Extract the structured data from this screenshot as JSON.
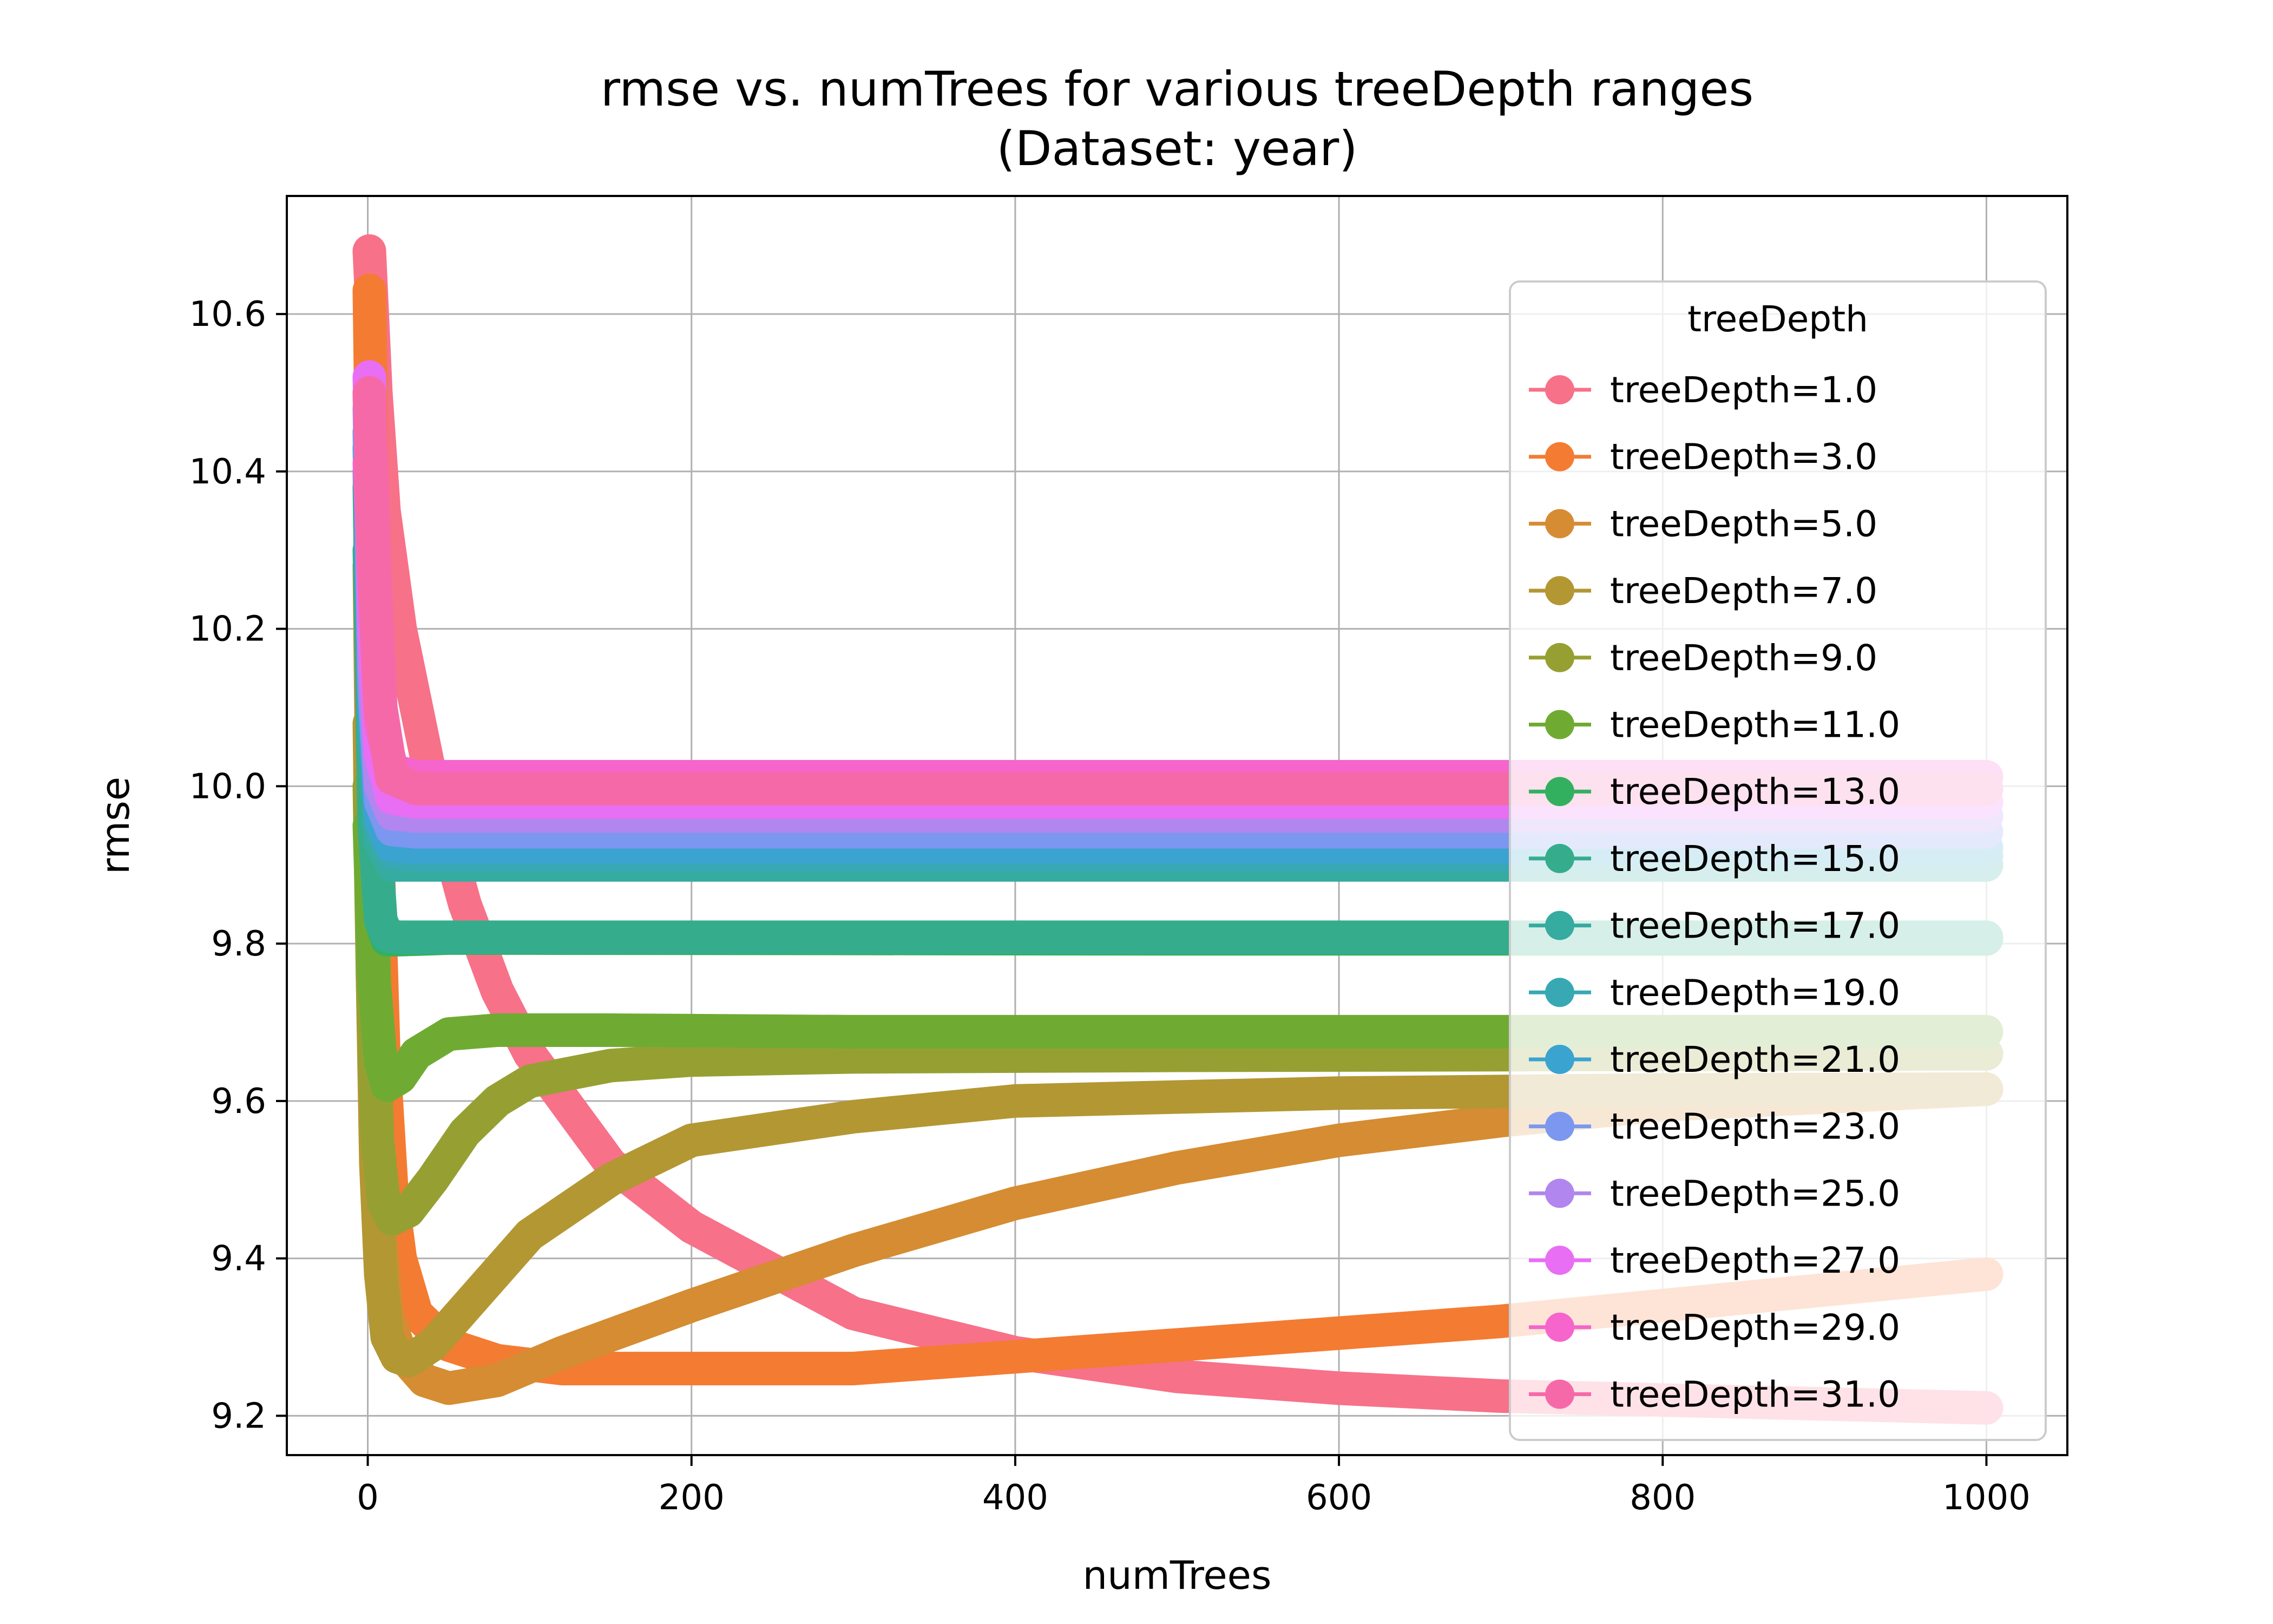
{
  "chart_data": {
    "type": "line",
    "title": "rmse vs. numTrees for various treeDepth ranges",
    "subtitle": "(Dataset: year)",
    "xlabel": "numTrees",
    "ylabel": "rmse",
    "xlim": [
      -50,
      1050
    ],
    "ylim": [
      9.15,
      10.75
    ],
    "xticks": [
      0,
      200,
      400,
      600,
      800,
      1000
    ],
    "xtick_labels": [
      "0",
      "200",
      "400",
      "600",
      "800",
      "1000"
    ],
    "yticks": [
      9.2,
      9.4,
      9.6,
      9.8,
      10.0,
      10.2,
      10.4,
      10.6
    ],
    "ytick_labels": [
      "9.2",
      "9.4",
      "9.6",
      "9.8",
      "10.0",
      "10.2",
      "10.4",
      "10.6"
    ],
    "grid": true,
    "legend": {
      "title": "treeDepth",
      "placement": "right"
    },
    "series": [
      {
        "name": "treeDepth=1.0",
        "color": "#f77189",
        "points": [
          [
            1,
            10.68
          ],
          [
            5,
            10.5
          ],
          [
            10,
            10.35
          ],
          [
            20,
            10.2
          ],
          [
            40,
            10.0
          ],
          [
            60,
            9.85
          ],
          [
            80,
            9.74
          ],
          [
            100,
            9.66
          ],
          [
            150,
            9.52
          ],
          [
            200,
            9.44
          ],
          [
            300,
            9.33
          ],
          [
            400,
            9.28
          ],
          [
            500,
            9.25
          ],
          [
            600,
            9.235
          ],
          [
            700,
            9.225
          ],
          [
            800,
            9.22
          ],
          [
            900,
            9.215
          ],
          [
            1000,
            9.21
          ]
        ]
      },
      {
        "name": "treeDepth=3.0",
        "color": "#f47b32",
        "points": [
          [
            1,
            10.63
          ],
          [
            5,
            10.0
          ],
          [
            10,
            9.65
          ],
          [
            15,
            9.48
          ],
          [
            20,
            9.4
          ],
          [
            30,
            9.33
          ],
          [
            50,
            9.29
          ],
          [
            80,
            9.27
          ],
          [
            120,
            9.26
          ],
          [
            200,
            9.26
          ],
          [
            300,
            9.26
          ],
          [
            400,
            9.275
          ],
          [
            500,
            9.29
          ],
          [
            600,
            9.305
          ],
          [
            700,
            9.32
          ],
          [
            800,
            9.34
          ],
          [
            900,
            9.36
          ],
          [
            1000,
            9.38
          ]
        ]
      },
      {
        "name": "treeDepth=5.0",
        "color": "#d58c32",
        "points": [
          [
            1,
            10.28
          ],
          [
            3,
            9.9
          ],
          [
            5,
            9.6
          ],
          [
            8,
            9.42
          ],
          [
            12,
            9.33
          ],
          [
            20,
            9.28
          ],
          [
            35,
            9.245
          ],
          [
            50,
            9.235
          ],
          [
            80,
            9.245
          ],
          [
            120,
            9.28
          ],
          [
            200,
            9.34
          ],
          [
            300,
            9.41
          ],
          [
            400,
            9.47
          ],
          [
            500,
            9.515
          ],
          [
            600,
            9.55
          ],
          [
            700,
            9.575
          ],
          [
            800,
            9.595
          ],
          [
            900,
            9.605
          ],
          [
            1000,
            9.615
          ]
        ]
      },
      {
        "name": "treeDepth=7.0",
        "color": "#b39733",
        "points": [
          [
            1,
            10.08
          ],
          [
            3,
            9.75
          ],
          [
            5,
            9.52
          ],
          [
            8,
            9.38
          ],
          [
            12,
            9.3
          ],
          [
            18,
            9.275
          ],
          [
            25,
            9.27
          ],
          [
            40,
            9.29
          ],
          [
            70,
            9.36
          ],
          [
            100,
            9.43
          ],
          [
            150,
            9.5
          ],
          [
            200,
            9.55
          ],
          [
            300,
            9.58
          ],
          [
            400,
            9.6
          ],
          [
            500,
            9.605
          ],
          [
            600,
            9.61
          ],
          [
            700,
            9.612
          ],
          [
            800,
            9.614
          ],
          [
            1000,
            9.615
          ]
        ]
      },
      {
        "name": "treeDepth=9.0",
        "color": "#96a032",
        "points": [
          [
            1,
            10.0
          ],
          [
            3,
            9.75
          ],
          [
            6,
            9.55
          ],
          [
            10,
            9.47
          ],
          [
            15,
            9.45
          ],
          [
            25,
            9.46
          ],
          [
            40,
            9.5
          ],
          [
            60,
            9.56
          ],
          [
            80,
            9.6
          ],
          [
            100,
            9.625
          ],
          [
            150,
            9.645
          ],
          [
            200,
            9.652
          ],
          [
            300,
            9.656
          ],
          [
            500,
            9.658
          ],
          [
            1000,
            9.66
          ]
        ]
      },
      {
        "name": "treeDepth=11.0",
        "color": "#6fab32",
        "points": [
          [
            1,
            9.95
          ],
          [
            4,
            9.75
          ],
          [
            8,
            9.65
          ],
          [
            12,
            9.62
          ],
          [
            20,
            9.63
          ],
          [
            30,
            9.66
          ],
          [
            50,
            9.685
          ],
          [
            80,
            9.69
          ],
          [
            150,
            9.69
          ],
          [
            300,
            9.688
          ],
          [
            600,
            9.688
          ],
          [
            1000,
            9.688
          ]
        ]
      },
      {
        "name": "treeDepth=13.0",
        "color": "#33b05f",
        "points": [
          [
            1,
            10.38
          ],
          [
            4,
            9.95
          ],
          [
            8,
            9.83
          ],
          [
            12,
            9.805
          ],
          [
            20,
            9.805
          ],
          [
            50,
            9.807
          ],
          [
            100,
            9.807
          ],
          [
            500,
            9.806
          ],
          [
            1000,
            9.806
          ]
        ]
      },
      {
        "name": "treeDepth=15.0",
        "color": "#35ad8c",
        "points": [
          [
            1,
            10.3
          ],
          [
            4,
            9.95
          ],
          [
            8,
            9.83
          ],
          [
            12,
            9.81
          ],
          [
            20,
            9.808
          ],
          [
            100,
            9.808
          ],
          [
            1000,
            9.808
          ]
        ]
      },
      {
        "name": "treeDepth=17.0",
        "color": "#36aba0",
        "points": [
          [
            1,
            10.4
          ],
          [
            4,
            10.05
          ],
          [
            8,
            9.93
          ],
          [
            15,
            9.9
          ],
          [
            30,
            9.9
          ],
          [
            100,
            9.9
          ],
          [
            1000,
            9.9
          ]
        ]
      },
      {
        "name": "treeDepth=19.0",
        "color": "#38a9b3",
        "points": [
          [
            1,
            10.43
          ],
          [
            4,
            10.08
          ],
          [
            8,
            9.95
          ],
          [
            15,
            9.915
          ],
          [
            30,
            9.912
          ],
          [
            1000,
            9.912
          ]
        ]
      },
      {
        "name": "treeDepth=21.0",
        "color": "#3ba3d0",
        "points": [
          [
            1,
            10.45
          ],
          [
            4,
            10.1
          ],
          [
            8,
            9.96
          ],
          [
            15,
            9.925
          ],
          [
            30,
            9.922
          ],
          [
            1000,
            9.922
          ]
        ]
      },
      {
        "name": "treeDepth=23.0",
        "color": "#7b97ef",
        "points": [
          [
            1,
            10.48
          ],
          [
            4,
            10.12
          ],
          [
            8,
            9.98
          ],
          [
            15,
            9.945
          ],
          [
            30,
            9.942
          ],
          [
            1000,
            9.942
          ]
        ]
      },
      {
        "name": "treeDepth=25.0",
        "color": "#b186ee",
        "points": [
          [
            1,
            10.5
          ],
          [
            4,
            10.15
          ],
          [
            8,
            10.0
          ],
          [
            15,
            9.965
          ],
          [
            30,
            9.962
          ],
          [
            1000,
            9.962
          ]
        ]
      },
      {
        "name": "treeDepth=27.0",
        "color": "#e86ef4",
        "points": [
          [
            1,
            10.52
          ],
          [
            4,
            10.2
          ],
          [
            8,
            10.04
          ],
          [
            15,
            9.985
          ],
          [
            30,
            9.98
          ],
          [
            1000,
            9.98
          ]
        ]
      },
      {
        "name": "treeDepth=29.0",
        "color": "#f565cc",
        "points": [
          [
            1,
            10.41
          ],
          [
            4,
            10.25
          ],
          [
            8,
            10.08
          ],
          [
            15,
            10.02
          ],
          [
            30,
            10.012
          ],
          [
            1000,
            10.012
          ]
        ]
      },
      {
        "name": "treeDepth=31.0",
        "color": "#f669a8",
        "points": [
          [
            1,
            10.5
          ],
          [
            4,
            10.28
          ],
          [
            8,
            10.1
          ],
          [
            15,
            10.01
          ],
          [
            30,
            9.997
          ],
          [
            1000,
            9.997
          ]
        ]
      }
    ]
  }
}
